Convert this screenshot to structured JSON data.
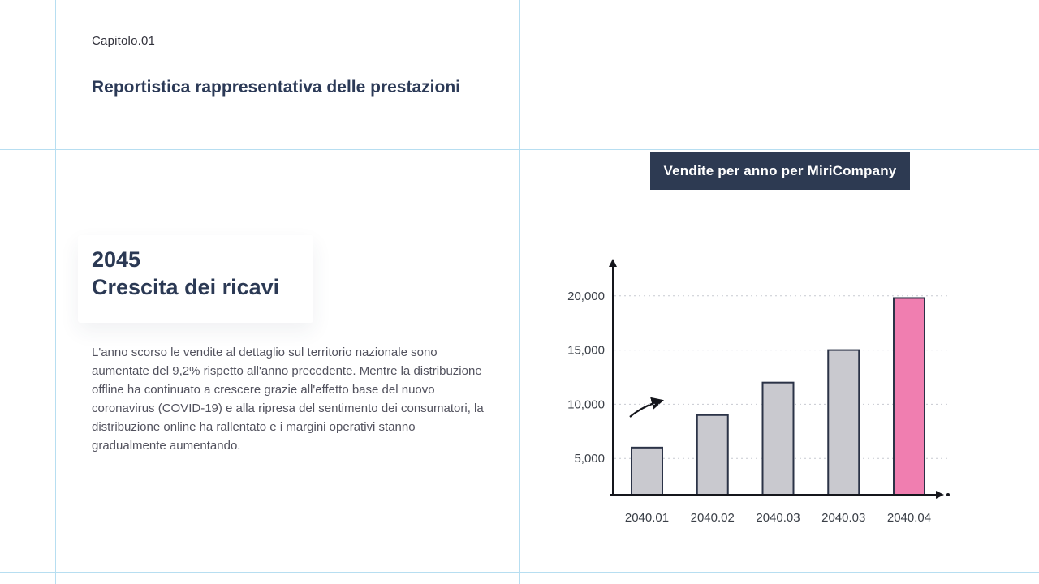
{
  "page": {
    "chapter": "Capitolo.01",
    "title": "Reportistica rappresentativa delle prestazioni"
  },
  "section": {
    "year": "2045",
    "heading": "Crescita dei ricavi",
    "body": "L'anno scorso le vendite al dettaglio sul territorio nazionale sono aumentate del 9,2% rispetto all'anno precedente. Mentre la distribuzione offline ha continuato a crescere grazie all'effetto base del nuovo coronavirus (COVID-19) e alla ripresa del sentimento dei consumatori, la distribuzione online ha rallentato e i margini operativi stanno gradualmente aumentando."
  },
  "badge": {
    "label": "Vendite per anno per MiriCompany",
    "bg": "#2d3a52",
    "text_color": "#ffffff"
  },
  "chart_data": {
    "type": "bar",
    "title": "Vendite per anno per MiriCompany",
    "categories": [
      "2040.01",
      "2040.02",
      "2040.03",
      "2040.03",
      "2040.04"
    ],
    "values": [
      6000,
      9000,
      12000,
      15000,
      19800
    ],
    "bar_colors": [
      "#c9c9cf",
      "#c9c9cf",
      "#c9c9cf",
      "#c9c9cf",
      "#f07eb0"
    ],
    "yticks": [
      5000,
      10000,
      15000,
      20000
    ],
    "ytick_labels": [
      "5,000",
      "10,000",
      "15,000",
      "20,000"
    ],
    "ylim": [
      0,
      22000
    ],
    "xlabel": "",
    "ylabel": "",
    "grid": "horizontal-dotted",
    "legend": "none",
    "annotation": "hand-drawn arrow pointing up-right near 10,000 level"
  },
  "colors": {
    "accent_navy": "#2d3a52",
    "bar_gray": "#c9c9cf",
    "bar_pink": "#f07eb0",
    "bar_outline": "#2b3347",
    "guide_blue": "#b7def1",
    "grid_gray": "#c7cad1"
  }
}
